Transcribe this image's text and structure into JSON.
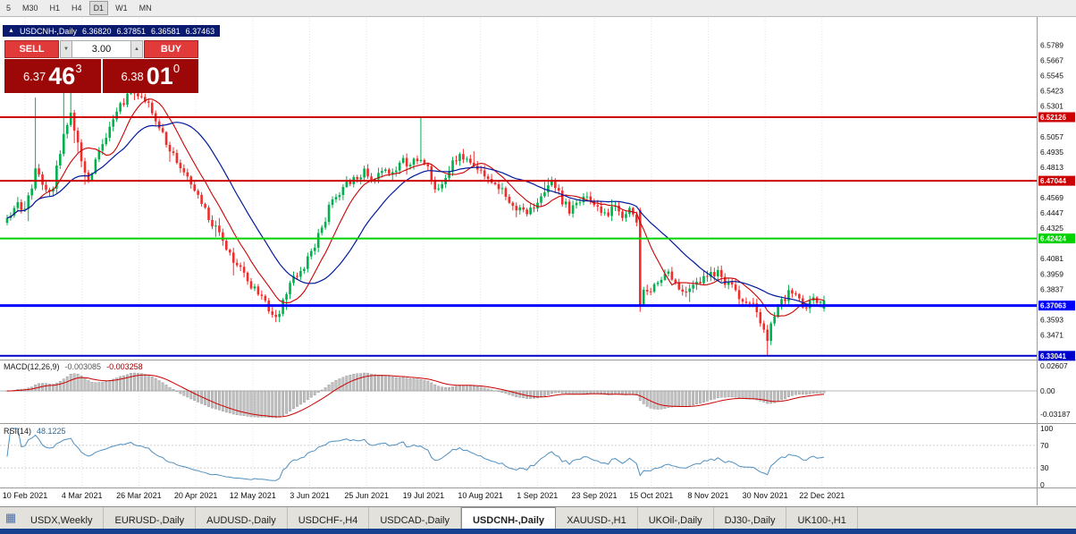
{
  "toolbar": {
    "timeframes": [
      "5",
      "M30",
      "H1",
      "H4",
      "D1",
      "W1",
      "MN"
    ],
    "active_timeframe": "D1"
  },
  "chart_header": {
    "symbol": "USDCNH-,Daily",
    "open": "6.36820",
    "high": "6.37851",
    "low": "6.36581",
    "close": "6.37463"
  },
  "trade_panel": {
    "sell_label": "SELL",
    "buy_label": "BUY",
    "volume": "3.00",
    "bid": {
      "big": "6.37",
      "main": "46",
      "sup": "3"
    },
    "ask": {
      "big": "6.38",
      "main": "01",
      "sup": "0"
    }
  },
  "chart_data": {
    "type": "candlestick",
    "symbol": "USDCNH-",
    "timeframe": "Daily",
    "x_labels": [
      "10 Feb 2021",
      "4 Mar 2021",
      "26 Mar 2021",
      "20 Apr 2021",
      "12 May 2021",
      "3 Jun 2021",
      "25 Jun 2021",
      "19 Jul 2021",
      "10 Aug 2021",
      "1 Sep 2021",
      "23 Sep 2021",
      "15 Oct 2021",
      "8 Nov 2021",
      "30 Nov 2021",
      "22 Dec 2021"
    ],
    "y_axis_ticks": [
      "6.5789",
      "6.5667",
      "6.5545",
      "6.5423",
      "6.5301",
      "6.5057",
      "6.4935",
      "6.4813",
      "6.4569",
      "6.4447",
      "6.4325",
      "6.4081",
      "6.3959",
      "6.3837",
      "6.3593",
      "6.3471"
    ],
    "price_range": {
      "max": 6.6014,
      "min": 6.3274
    },
    "levels": [
      {
        "price": 6.52126,
        "label": "6.52126",
        "color": "#cc0000",
        "width": 2
      },
      {
        "price": 6.47044,
        "label": "6.47044",
        "color": "#cc0000",
        "width": 2
      },
      {
        "price": 6.42424,
        "label": "6.42424",
        "color": "#00d200",
        "width": 2
      },
      {
        "price": 6.37063,
        "label": "6.37063",
        "color": "#0000ff",
        "width": 3
      },
      {
        "price": 6.33041,
        "label": "6.33041",
        "color": "#0000cc",
        "width": 2
      }
    ],
    "last_candle": {
      "open": 6.3682,
      "high": 6.37851,
      "low": 6.36581,
      "close": 6.37463
    },
    "price_path": [
      [
        0.0,
        6.438
      ],
      [
        0.01,
        6.452
      ],
      [
        0.02,
        6.445
      ],
      [
        0.035,
        6.478
      ],
      [
        0.045,
        6.468
      ],
      [
        0.055,
        6.462
      ],
      [
        0.062,
        6.486
      ],
      [
        0.07,
        6.51
      ],
      [
        0.078,
        6.524
      ],
      [
        0.085,
        6.506
      ],
      [
        0.092,
        6.48
      ],
      [
        0.1,
        6.469
      ],
      [
        0.11,
        6.488
      ],
      [
        0.125,
        6.512
      ],
      [
        0.14,
        6.532
      ],
      [
        0.153,
        6.544
      ],
      [
        0.163,
        6.54
      ],
      [
        0.175,
        6.528
      ],
      [
        0.19,
        6.507
      ],
      [
        0.205,
        6.49
      ],
      [
        0.22,
        6.477
      ],
      [
        0.235,
        6.456
      ],
      [
        0.25,
        6.438
      ],
      [
        0.265,
        6.42
      ],
      [
        0.28,
        6.404
      ],
      [
        0.296,
        6.39
      ],
      [
        0.31,
        6.377
      ],
      [
        0.324,
        6.366
      ],
      [
        0.332,
        6.362
      ],
      [
        0.342,
        6.381
      ],
      [
        0.354,
        6.396
      ],
      [
        0.366,
        6.404
      ],
      [
        0.38,
        6.424
      ],
      [
        0.393,
        6.447
      ],
      [
        0.407,
        6.461
      ],
      [
        0.42,
        6.471
      ],
      [
        0.437,
        6.477
      ],
      [
        0.45,
        6.471
      ],
      [
        0.462,
        6.482
      ],
      [
        0.472,
        6.476
      ],
      [
        0.482,
        6.487
      ],
      [
        0.492,
        6.481
      ],
      [
        0.5,
        6.49
      ],
      [
        0.508,
        6.487
      ],
      [
        0.517,
        6.477
      ],
      [
        0.526,
        6.463
      ],
      [
        0.536,
        6.472
      ],
      [
        0.546,
        6.487
      ],
      [
        0.556,
        6.491
      ],
      [
        0.566,
        6.486
      ],
      [
        0.577,
        6.481
      ],
      [
        0.59,
        6.474
      ],
      [
        0.601,
        6.467
      ],
      [
        0.613,
        6.457
      ],
      [
        0.625,
        6.448
      ],
      [
        0.636,
        6.443
      ],
      [
        0.647,
        6.453
      ],
      [
        0.658,
        6.463
      ],
      [
        0.668,
        6.469
      ],
      [
        0.679,
        6.455
      ],
      [
        0.69,
        6.446
      ],
      [
        0.701,
        6.452
      ],
      [
        0.71,
        6.459
      ],
      [
        0.718,
        6.449
      ],
      [
        0.73,
        6.443
      ],
      [
        0.743,
        6.448
      ],
      [
        0.755,
        6.443
      ],
      [
        0.764,
        6.449
      ],
      [
        0.77,
        6.441
      ],
      [
        0.776,
        6.384
      ],
      [
        0.786,
        6.378
      ],
      [
        0.796,
        6.389
      ],
      [
        0.806,
        6.398
      ],
      [
        0.816,
        6.391
      ],
      [
        0.826,
        6.384
      ],
      [
        0.836,
        6.381
      ],
      [
        0.846,
        6.389
      ],
      [
        0.857,
        6.393
      ],
      [
        0.868,
        6.398
      ],
      [
        0.878,
        6.391
      ],
      [
        0.888,
        6.384
      ],
      [
        0.898,
        6.377
      ],
      [
        0.908,
        6.371
      ],
      [
        0.918,
        6.367
      ],
      [
        0.925,
        6.352
      ],
      [
        0.93,
        6.343
      ],
      [
        0.938,
        6.359
      ],
      [
        0.947,
        6.372
      ],
      [
        0.956,
        6.381
      ],
      [
        0.966,
        6.377
      ],
      [
        0.976,
        6.371
      ],
      [
        0.986,
        6.374
      ],
      [
        1.0,
        6.3746
      ]
    ],
    "wick_events": [
      {
        "t": 0.036,
        "high": 6.537
      },
      {
        "t": 0.071,
        "high": 6.548
      },
      {
        "t": 0.079,
        "high": 6.553
      },
      {
        "t": 0.154,
        "high": 6.551
      },
      {
        "t": 0.508,
        "high": 6.522
      },
      {
        "t": 0.773,
        "open": 6.447,
        "close": 6.371,
        "low": 6.3655
      },
      {
        "t": 0.93,
        "low": 6.3304
      }
    ],
    "indicators": {
      "macd": {
        "label": "MACD(12,26,9)",
        "value_main": "-0.003085",
        "value_signal": "-0.003258",
        "axis": [
          "0.02607",
          "0.00",
          "-0.03187"
        ]
      },
      "rsi": {
        "label": "RSI(14)",
        "value": "48.1225",
        "axis": [
          "100",
          "70",
          "30",
          "0"
        ],
        "levels": [
          70,
          30
        ]
      }
    },
    "colors": {
      "up": "#00b04d",
      "down": "#f22b2b",
      "ma_fast": "#cc0000",
      "ma_slow": "#001a9e",
      "macd_hist": "#c2c2c2",
      "macd_hist_edge": "#8a8a8a",
      "macd_signal": "#cc0000",
      "rsi_line": "#4f8fc0"
    }
  },
  "tabs": {
    "items": [
      "USDX,Weekly",
      "EURUSD-,Daily",
      "AUDUSD-,Daily",
      "USDCHF-,H4",
      "USDCAD-,Daily",
      "USDCNH-,Daily",
      "XAUUSD-,H1",
      "UKOil-,Daily",
      "DJ30-,Daily",
      "UK100-,H1"
    ],
    "active": "USDCNH-,Daily"
  }
}
